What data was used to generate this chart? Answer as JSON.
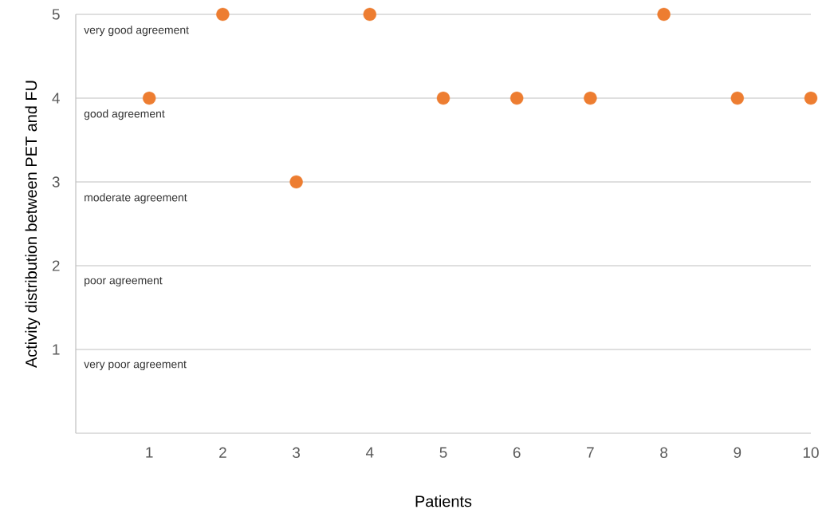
{
  "chart_data": {
    "type": "scatter",
    "xlabel": "Patients",
    "ylabel": "Activity distribution between PET and FU",
    "x": [
      1,
      2,
      3,
      4,
      5,
      6,
      7,
      8,
      9,
      10
    ],
    "series": [
      {
        "color": "#ed7d31",
        "values": [
          4,
          5,
          3,
          5,
          4,
          4,
          4,
          5,
          4,
          4
        ]
      }
    ],
    "xlim": [
      0,
      10
    ],
    "xticks": [
      1,
      2,
      3,
      4,
      5,
      6,
      7,
      8,
      9,
      10
    ],
    "ylim": [
      0,
      5
    ],
    "yticks": [
      1,
      2,
      3,
      4,
      5
    ],
    "grid": "y",
    "annotations": [
      "very good agreement",
      "good agreement",
      "moderate agreement",
      "poor agreement",
      "very poor agreement"
    ]
  }
}
